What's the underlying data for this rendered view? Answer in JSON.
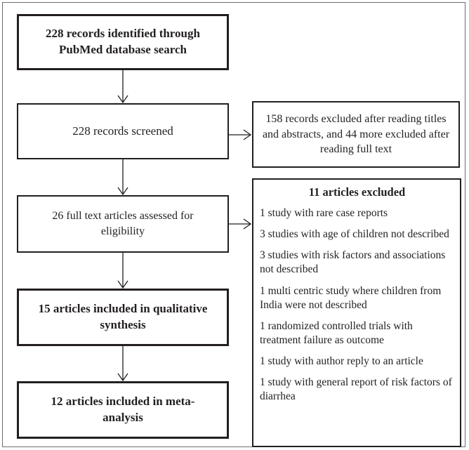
{
  "flow": {
    "identified": "228 records identified through PubMed database search",
    "screened": "228 records screened",
    "full_text": "26 full text articles assessed for eligibility",
    "qualitative": "15 articles included in qualitative synthesis",
    "meta_analysis": "12 articles included in meta-analysis"
  },
  "excluded_records": "158 records excluded after reading titles and abstracts, and 44 more excluded after reading full text",
  "excluded_articles": {
    "title": "11 articles excluded",
    "reasons": [
      "1 study with rare case reports",
      "3 studies with age of children not described",
      "3 studies with risk factors and associations not described",
      "1 multi centric study where children from India were not described",
      "1 randomized controlled trials with treatment failure as outcome",
      "1 study with author reply to an article",
      "1 study with general report of risk factors of diarrhea"
    ]
  }
}
